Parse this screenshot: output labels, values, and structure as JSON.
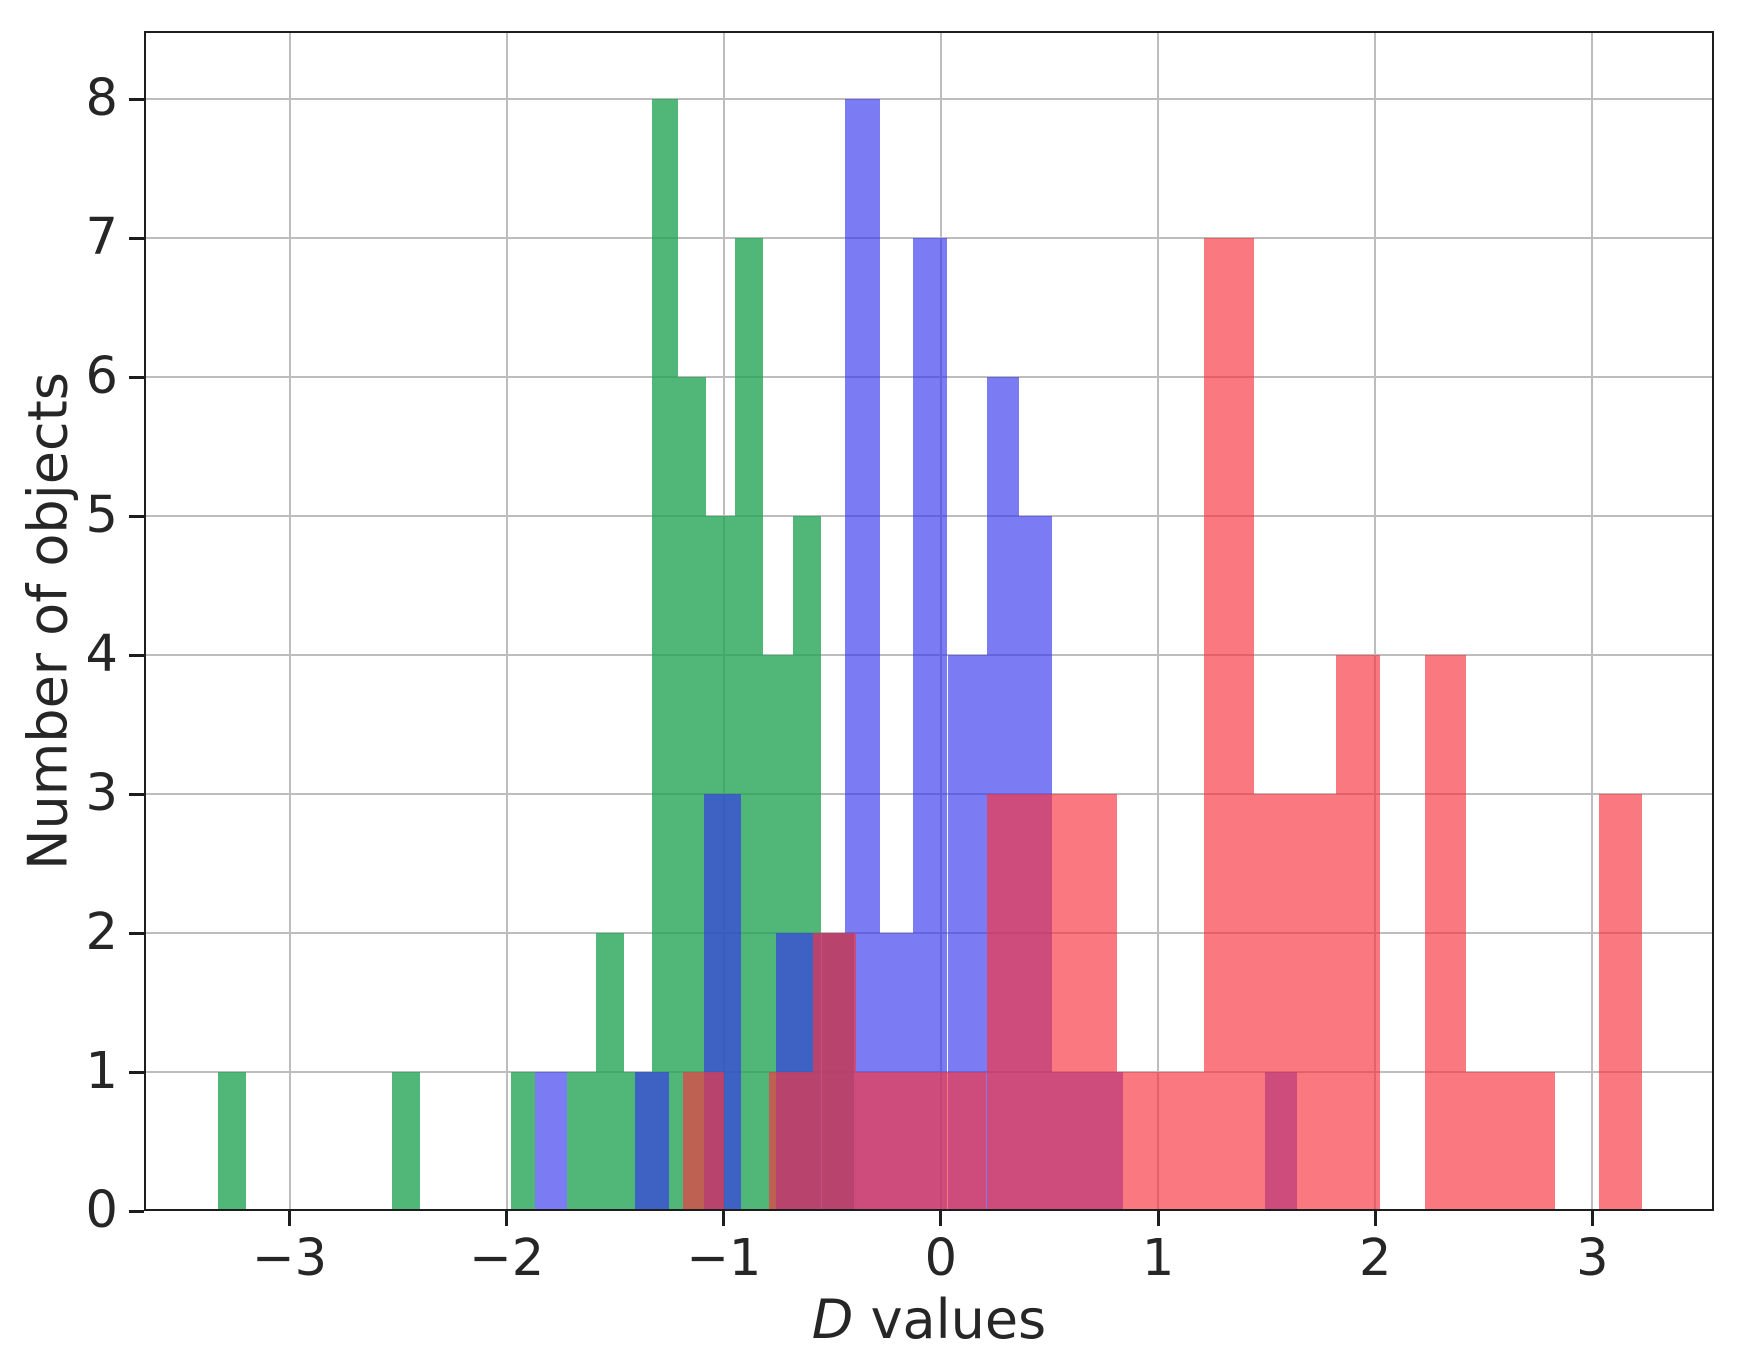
{
  "chart_data": {
    "type": "bar",
    "subtype": "overlapping-histograms",
    "title": "",
    "xlabel": "D values",
    "xlabel_parts": {
      "italic": "D",
      "rest": " values"
    },
    "ylabel": "Number of objects",
    "xlim": [
      -3.67,
      3.56
    ],
    "ylim": [
      0,
      8.49
    ],
    "grid": true,
    "legend": null,
    "xticks": [
      {
        "label": "−3",
        "value": -3
      },
      {
        "label": "−2",
        "value": -2
      },
      {
        "label": "−1",
        "value": -1
      },
      {
        "label": "0",
        "value": 0
      },
      {
        "label": "1",
        "value": 1
      },
      {
        "label": "2",
        "value": 2
      },
      {
        "label": "3",
        "value": 3
      }
    ],
    "yticks": [
      {
        "label": "0",
        "value": 0
      },
      {
        "label": "1",
        "value": 1
      },
      {
        "label": "2",
        "value": 2
      },
      {
        "label": "3",
        "value": 3
      },
      {
        "label": "4",
        "value": 4
      },
      {
        "label": "5",
        "value": 5
      },
      {
        "label": "6",
        "value": 6
      },
      {
        "label": "7",
        "value": 7
      },
      {
        "label": "8",
        "value": 8
      }
    ],
    "series": [
      {
        "name": "green-histogram",
        "color": "rgba(32,163,83,0.78)",
        "bars": [
          [
            -3.33,
            -3.2,
            1
          ],
          [
            -2.53,
            -2.4,
            1
          ],
          [
            -1.98,
            -1.87,
            1
          ],
          [
            -1.72,
            -1.59,
            1
          ],
          [
            -1.59,
            -1.46,
            2
          ],
          [
            -1.46,
            -1.33,
            1
          ],
          [
            -1.33,
            -1.21,
            8
          ],
          [
            -1.21,
            -1.08,
            6
          ],
          [
            -1.08,
            -0.95,
            5
          ],
          [
            -0.95,
            -0.82,
            7
          ],
          [
            -0.82,
            -0.68,
            4
          ],
          [
            -0.68,
            -0.55,
            5
          ],
          [
            -0.55,
            -0.4,
            2
          ]
        ]
      },
      {
        "name": "blue-histogram",
        "color": "rgba(52,52,236,0.65)",
        "bars": [
          [
            -1.87,
            -1.72,
            1
          ],
          [
            -1.41,
            -1.25,
            1
          ],
          [
            -1.09,
            -0.92,
            3
          ],
          [
            -0.76,
            -0.6,
            2
          ],
          [
            -0.6,
            -0.44,
            2
          ],
          [
            -0.44,
            -0.28,
            8
          ],
          [
            -0.28,
            -0.13,
            2
          ],
          [
            -0.13,
            0.03,
            7
          ],
          [
            0.03,
            0.21,
            4
          ],
          [
            0.21,
            0.36,
            6
          ],
          [
            0.36,
            0.51,
            5
          ],
          [
            0.51,
            0.67,
            1
          ],
          [
            0.67,
            0.84,
            1
          ],
          [
            1.49,
            1.64,
            1
          ]
        ]
      },
      {
        "name": "red-histogram",
        "color": "rgba(247,52,62,0.66)",
        "bars": [
          [
            -1.19,
            -1.0,
            1
          ],
          [
            -0.79,
            -0.59,
            1
          ],
          [
            -0.59,
            -0.39,
            2
          ],
          [
            -0.39,
            -0.19,
            1
          ],
          [
            -0.19,
            0.01,
            1
          ],
          [
            0.01,
            0.21,
            1
          ],
          [
            0.21,
            0.41,
            3
          ],
          [
            0.41,
            0.61,
            3
          ],
          [
            0.61,
            0.81,
            3
          ],
          [
            0.81,
            1.01,
            1
          ],
          [
            1.01,
            1.21,
            1
          ],
          [
            1.21,
            1.44,
            7
          ],
          [
            1.44,
            1.64,
            3
          ],
          [
            1.64,
            1.82,
            3
          ],
          [
            1.82,
            2.02,
            4
          ],
          [
            2.23,
            2.42,
            4
          ],
          [
            2.42,
            2.62,
            1
          ],
          [
            2.62,
            2.83,
            1
          ],
          [
            3.03,
            3.23,
            3
          ]
        ]
      }
    ],
    "colors": {
      "grid": "#bdbdbd",
      "spine": "#1d1d1d",
      "overlap_blue_green": "#3c61c2",
      "overlap_red_green": "#dd6438",
      "overlap_red_blue": "#dd3c8e",
      "overlap_triple": "#b32e62"
    }
  }
}
